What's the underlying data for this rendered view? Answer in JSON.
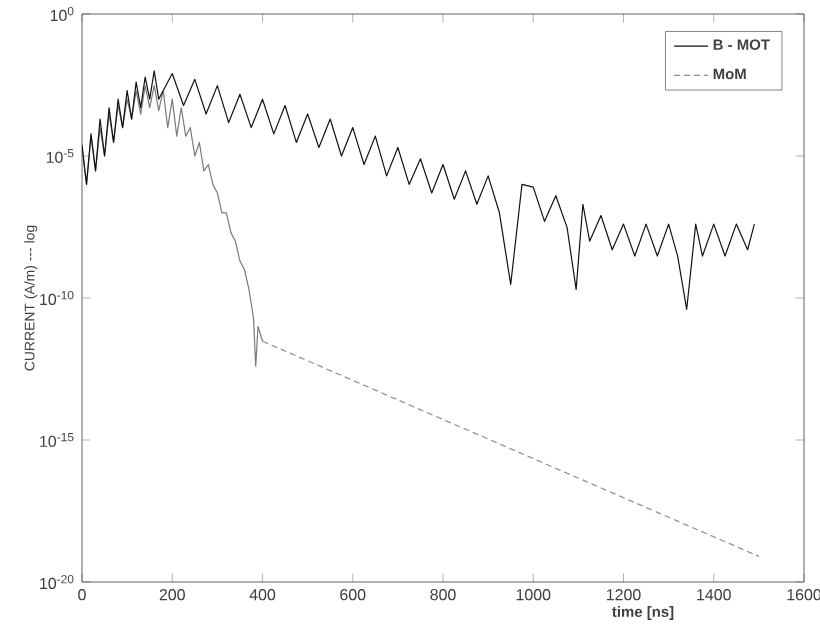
{
  "chart_data": {
    "type": "line",
    "xlabel": "time [ns]",
    "ylabel": "CURRENT (A/m) --- log",
    "log": "y",
    "legend": "top right",
    "xlim": [
      0,
      1600
    ],
    "xticks": [
      0,
      200,
      400,
      600,
      800,
      1000,
      1200,
      1400,
      1600
    ],
    "ylim": [
      1e-20,
      1
    ],
    "yticks": [
      {
        "value": 1e-20,
        "label": "10$^{-20}$"
      },
      {
        "value": 1e-15,
        "label": "10$^{-15}$"
      },
      {
        "value": 1e-10,
        "label": "10$^{-10}$"
      },
      {
        "value": 1e-05,
        "label": "10$^{-5}$"
      },
      {
        "value": 1,
        "label": "10$^{0}$"
      }
    ],
    "series": [
      {
        "color": "#7a7a7a",
        "line_style": "solid",
        "x": [
          0,
          10,
          20,
          30,
          40,
          50,
          60,
          70,
          80,
          90,
          100,
          110,
          120,
          130,
          140,
          150,
          160,
          170,
          180,
          190,
          200,
          210,
          220,
          230,
          240,
          250,
          260,
          270,
          280,
          290,
          300,
          310,
          320,
          330,
          340,
          350,
          360,
          370,
          380,
          385,
          390,
          400
        ],
        "values": [
          2e-05,
          1e-06,
          5e-05,
          3e-06,
          0.0001,
          1e-05,
          0.0003,
          3e-05,
          0.0006,
          0.0001,
          0.001,
          0.0002,
          0.002,
          0.0003,
          0.003,
          0.0005,
          0.003,
          0.0004,
          0.002,
          0.0001,
          0.001,
          5e-05,
          0.0005,
          5e-05,
          0.0001,
          1e-05,
          3e-05,
          3e-06,
          5e-06,
          1e-06,
          5e-07,
          1e-07,
          1e-07,
          2e-08,
          1e-08,
          2e-09,
          1e-09,
          2e-10,
          2e-11,
          4e-13,
          1e-11,
          3e-12
        ]
      },
      {
        "name": "B - MOT",
        "color": "#111111",
        "line_style": "solid",
        "x": [
          0,
          10,
          20,
          30,
          40,
          50,
          60,
          70,
          80,
          90,
          100,
          110,
          120,
          130,
          140,
          150,
          160,
          170,
          200,
          225,
          250,
          275,
          300,
          325,
          350,
          375,
          400,
          425,
          450,
          475,
          500,
          525,
          550,
          575,
          600,
          625,
          650,
          675,
          700,
          725,
          750,
          775,
          800,
          825,
          850,
          875,
          900,
          925,
          950,
          975,
          1000,
          1025,
          1050,
          1075,
          1095,
          1110,
          1125,
          1150,
          1175,
          1200,
          1225,
          1250,
          1275,
          1300,
          1320,
          1340,
          1360,
          1375,
          1400,
          1425,
          1450,
          1475,
          1490
        ],
        "values": [
          2.5e-05,
          1e-06,
          6e-05,
          3e-06,
          0.0002,
          1e-05,
          0.0005,
          3e-05,
          0.001,
          0.0001,
          0.002,
          0.0002,
          0.004,
          0.0005,
          0.006,
          0.001,
          0.01,
          0.001,
          0.008,
          0.0006,
          0.005,
          0.0003,
          0.003,
          0.00015,
          0.0015,
          0.0001,
          0.001,
          6e-05,
          0.0006,
          3e-05,
          0.0003,
          2e-05,
          0.0002,
          1e-05,
          0.0001,
          5e-06,
          5e-05,
          2e-06,
          2e-05,
          1e-06,
          8e-06,
          5e-07,
          5e-06,
          3e-07,
          3e-06,
          2e-07,
          2e-06,
          1e-07,
          3e-10,
          1e-06,
          8e-07,
          5e-08,
          4e-07,
          3e-08,
          2e-10,
          2e-07,
          1e-08,
          8e-08,
          5e-09,
          4e-08,
          3e-09,
          4e-08,
          3e-09,
          4e-08,
          3e-09,
          4e-11,
          4e-08,
          3e-09,
          4e-08,
          3e-09,
          4e-08,
          5e-09,
          4e-08
        ]
      },
      {
        "name": "MoM",
        "color": "#8c8c8c",
        "line_style": "dashed",
        "x": [
          400,
          1500
        ],
        "values": [
          3e-12,
          8e-20
        ]
      }
    ]
  }
}
